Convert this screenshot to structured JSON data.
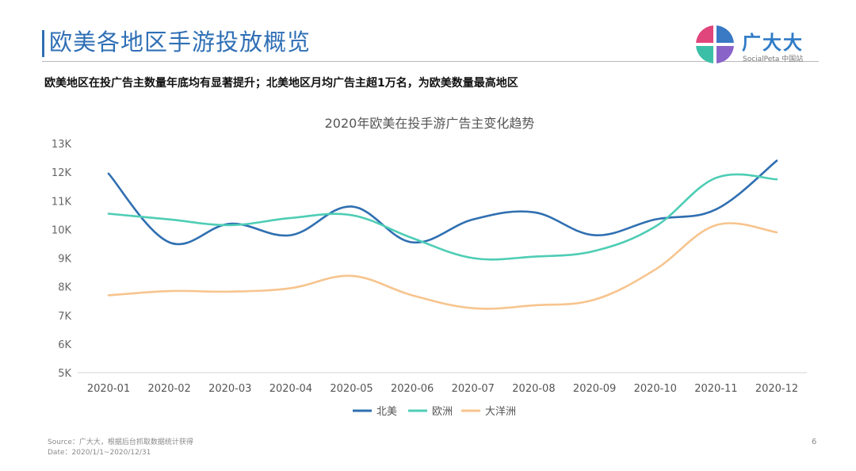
{
  "slide": {
    "title": "欧美各地区手游投放概览",
    "subtitle": "欧美地区在投广告主数量年底均有显著提升；北美地区月均广告主超1万名，为欧美数量最高地区",
    "source": "Source：广大大，根据后台抓取数据统计获得",
    "date": "Date：2020/1/1~2020/12/31",
    "page_number": "6"
  },
  "logo": {
    "name": "广大大",
    "sub": "SocialPeta 中国站",
    "colors": [
      "#3a79c4",
      "#e0457b",
      "#3cbfa7",
      "#8a63c9"
    ]
  },
  "chart_data": {
    "type": "line",
    "title": "2020年欧美在投手游广告主变化趋势",
    "categories": [
      "2020-01",
      "2020-02",
      "2020-03",
      "2020-04",
      "2020-05",
      "2020-06",
      "2020-07",
      "2020-08",
      "2020-09",
      "2020-10",
      "2020-11",
      "2020-12"
    ],
    "ylim": [
      5000,
      13000
    ],
    "yticks": [
      5000,
      6000,
      7000,
      8000,
      9000,
      10000,
      11000,
      12000,
      13000
    ],
    "ytick_labels": [
      "5K",
      "6K",
      "7K",
      "8K",
      "9K",
      "10K",
      "11K",
      "12K",
      "13K"
    ],
    "grid": false,
    "legend": "bottom",
    "series": [
      {
        "name": "北美",
        "color": "#2f6fb1",
        "values": [
          11950,
          9550,
          10200,
          9800,
          10800,
          9550,
          10350,
          10600,
          9800,
          10350,
          10700,
          12400
        ]
      },
      {
        "name": "欧洲",
        "color": "#4ecdb5",
        "values": [
          10550,
          10350,
          10150,
          10400,
          10500,
          9700,
          9000,
          9050,
          9250,
          10100,
          11800,
          11750
        ]
      },
      {
        "name": "大洋洲",
        "color": "#f7c48e",
        "values": [
          7700,
          7850,
          7830,
          7950,
          8380,
          7700,
          7250,
          7350,
          7550,
          8600,
          10150,
          9900
        ]
      }
    ]
  }
}
